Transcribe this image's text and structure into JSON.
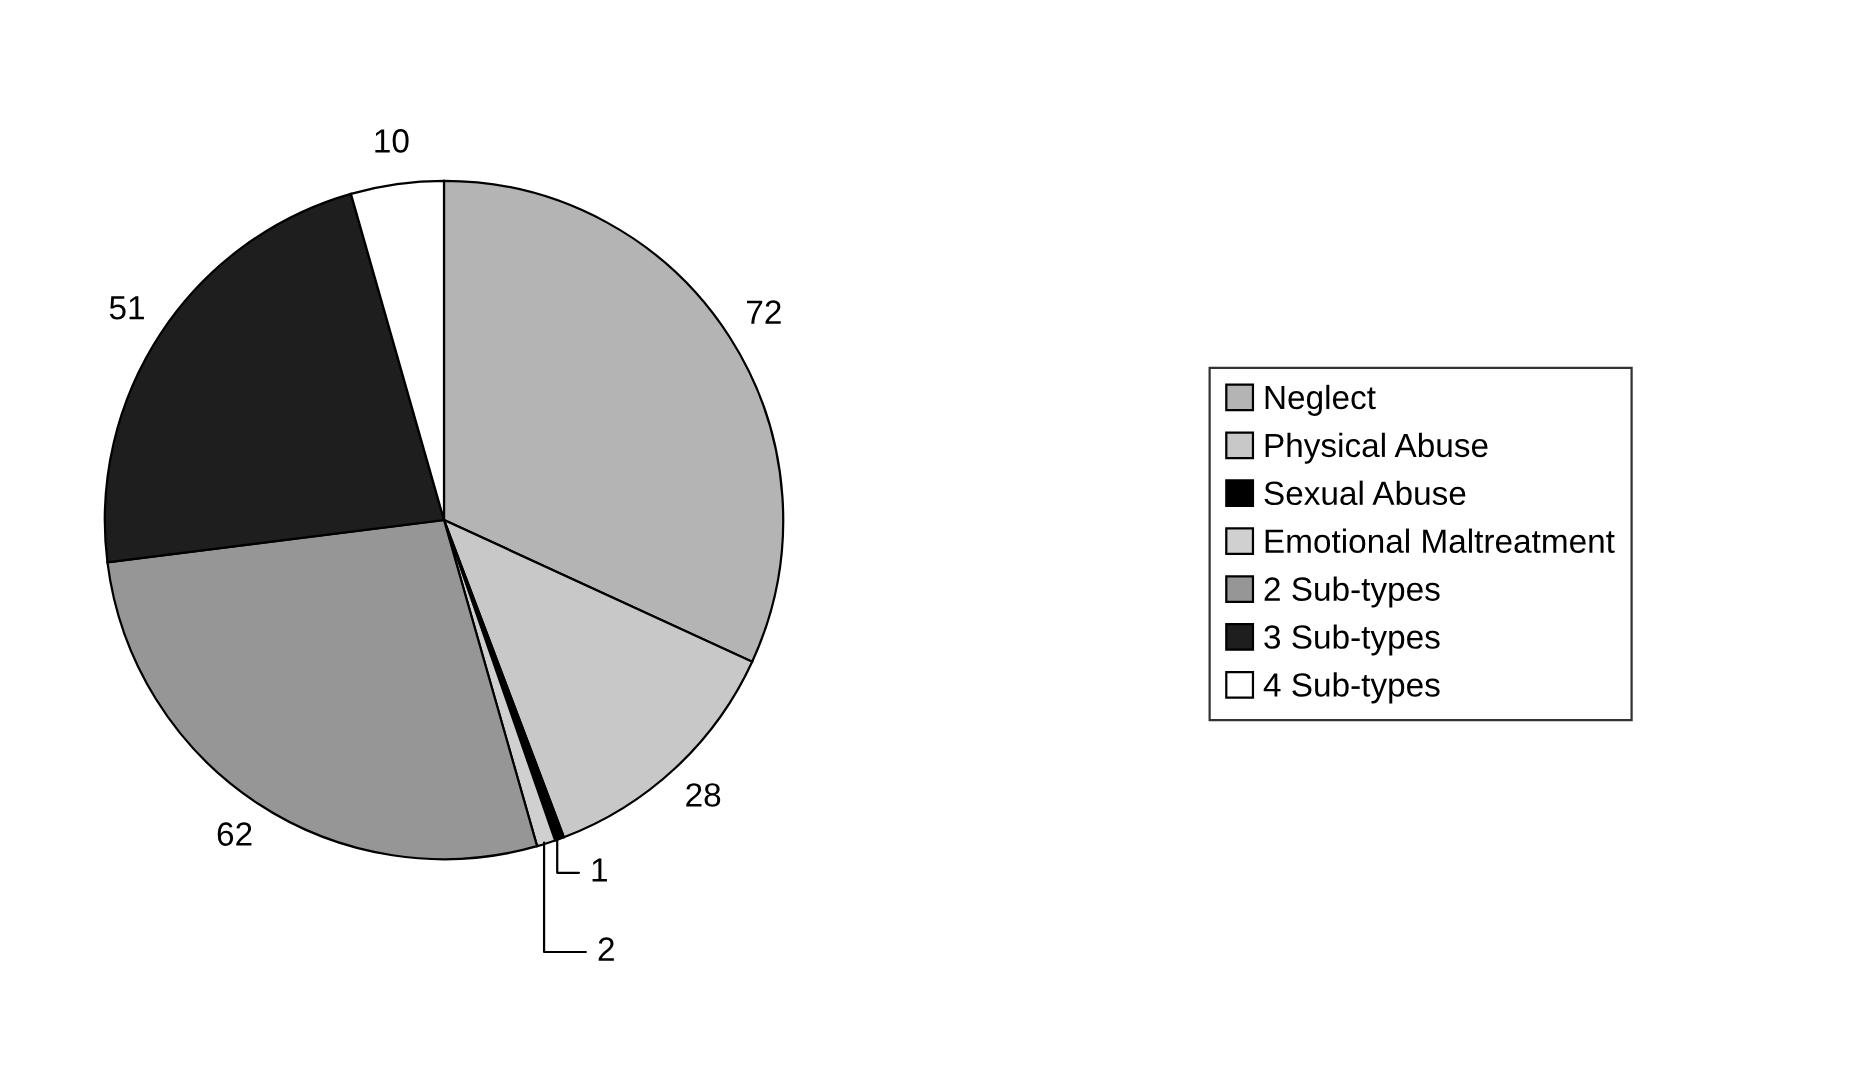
{
  "chart_data": {
    "type": "pie",
    "categories": [
      "Neglect",
      "Physical Abuse",
      "Sexual Abuse",
      "Emotional Maltreatment",
      "2 Sub-types",
      "3 Sub-types",
      "4 Sub-types"
    ],
    "values": [
      72,
      28,
      1,
      2,
      62,
      51,
      10
    ],
    "colors": [
      "#b4b4b4",
      "#c8c8c8",
      "#000000",
      "#d0d0d0",
      "#969696",
      "#1e1e1e",
      "#ffffff"
    ],
    "data_labels": true,
    "legend": "right"
  }
}
